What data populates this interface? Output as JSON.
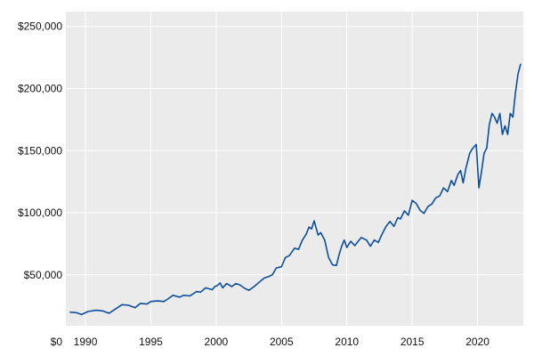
{
  "chart_data": {
    "type": "line",
    "title": "",
    "xlabel": "",
    "ylabel": "",
    "xlim": [
      1988.5,
      2023.5
    ],
    "ylim": [
      9000,
      262000
    ],
    "grid": true,
    "legend": "none",
    "colors": {
      "plot_bg": "#ebebeb",
      "grid": "#ffffff",
      "line": "#0b4f9c"
    },
    "y_zero_label": "$0",
    "y_ticks": [
      {
        "value": 50000,
        "label": "$50,000"
      },
      {
        "value": 100000,
        "label": "$100,000"
      },
      {
        "value": 150000,
        "label": "$150,000"
      },
      {
        "value": 200000,
        "label": "$200,000"
      },
      {
        "value": 250000,
        "label": "$250,000"
      }
    ],
    "x_ticks": [
      {
        "value": 1990,
        "label": "1990"
      },
      {
        "value": 1995,
        "label": "1995"
      },
      {
        "value": 2000,
        "label": "2000"
      },
      {
        "value": 2005,
        "label": "2005"
      },
      {
        "value": 2010,
        "label": "2010"
      },
      {
        "value": 2015,
        "label": "2015"
      },
      {
        "value": 2020,
        "label": "2020"
      }
    ],
    "series": [
      {
        "x": [
          1988.8,
          1989.3,
          1989.7,
          1990.2,
          1990.8,
          1991.3,
          1991.8,
          1992.3,
          1992.8,
          1993.3,
          1993.8,
          1994.2,
          1994.7,
          1995.0,
          1995.5,
          1996.0,
          1996.3,
          1996.7,
          1997.2,
          1997.5,
          1998.0,
          1998.5,
          1998.8,
          1999.2,
          1999.7,
          1999.9,
          2000.1,
          2000.3,
          2000.5,
          2000.8,
          2001.2,
          2001.5,
          2001.8,
          2002.2,
          2002.5,
          2002.9,
          2003.4,
          2003.7,
          2004.0,
          2004.3,
          2004.6,
          2005.0,
          2005.3,
          2005.6,
          2006.0,
          2006.3,
          2006.6,
          2006.9,
          2007.1,
          2007.3,
          2007.5,
          2007.8,
          2008.0,
          2008.3,
          2008.6,
          2008.9,
          2009.2,
          2009.4,
          2009.6,
          2009.8,
          2010.0,
          2010.3,
          2010.6,
          2010.9,
          2011.1,
          2011.3,
          2011.5,
          2011.8,
          2012.1,
          2012.4,
          2012.7,
          2013.0,
          2013.3,
          2013.6,
          2013.9,
          2014.1,
          2014.4,
          2014.7,
          2015.0,
          2015.3,
          2015.6,
          2015.9,
          2016.2,
          2016.5,
          2016.8,
          2017.1,
          2017.4,
          2017.7,
          2018.0,
          2018.2,
          2018.5,
          2018.7,
          2018.9,
          2019.1,
          2019.4,
          2019.6,
          2019.9,
          2020.1,
          2020.3,
          2020.5,
          2020.7,
          2020.9,
          2021.1,
          2021.3,
          2021.5,
          2021.7,
          2021.9,
          2022.1,
          2022.3,
          2022.5,
          2022.7,
          2022.9,
          2023.1,
          2023.3
        ],
        "values": [
          20000,
          19500,
          18000,
          20500,
          21500,
          21000,
          19000,
          22500,
          26000,
          25500,
          23500,
          27000,
          26500,
          28500,
          29000,
          28500,
          30500,
          33500,
          32000,
          33500,
          33000,
          36500,
          36000,
          39500,
          38000,
          40500,
          41500,
          43500,
          39500,
          43000,
          40500,
          43000,
          42000,
          39000,
          37500,
          40500,
          45000,
          47500,
          48500,
          50000,
          55500,
          56500,
          64000,
          65500,
          71500,
          70500,
          78000,
          83000,
          88500,
          87000,
          93500,
          82000,
          84000,
          78000,
          64000,
          58000,
          57500,
          66000,
          73000,
          78000,
          72000,
          77000,
          73500,
          77500,
          80000,
          79000,
          78000,
          73000,
          78000,
          76000,
          83000,
          89000,
          93000,
          89000,
          96000,
          95000,
          101500,
          98000,
          110000,
          107500,
          102000,
          99500,
          105000,
          107000,
          112000,
          113500,
          120000,
          117000,
          126000,
          122000,
          131000,
          134000,
          124000,
          135500,
          148000,
          151500,
          155000,
          120000,
          133000,
          148000,
          152000,
          171000,
          180000,
          177000,
          172000,
          180000,
          163000,
          170000,
          163000,
          180000,
          177000,
          197000,
          212000,
          220000
        ]
      }
    ]
  }
}
